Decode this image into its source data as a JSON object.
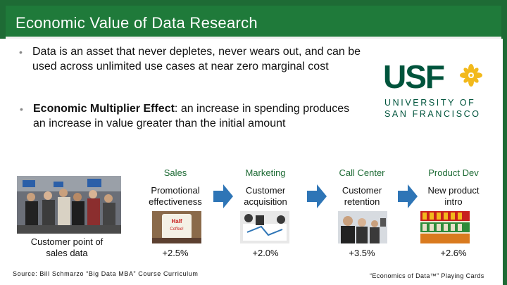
{
  "slide": {
    "title": "Economic Value of Data Research",
    "bullets": [
      {
        "text": "Data is an asset that never depletes, never wears out, and can be used across unlimited use cases at near zero marginal cost"
      },
      {
        "bold": "Economic Multiplier Effect",
        "text": ": an increase in spending produces an increase in value greater than the initial amount"
      }
    ],
    "logo": {
      "letters": "USF",
      "line1": "UNIVERSITY OF",
      "line2": "SAN FRANCISCO",
      "brand_color": "#00543c",
      "accent_color": "#f2b91c"
    },
    "photo_caption": "Customer point of sales data",
    "columns": [
      {
        "head": "Sales",
        "desc": "Promotional effectiveness",
        "value": "+2.5%"
      },
      {
        "head": "Marketing",
        "desc": "Customer acquisition",
        "value": "+2.0%"
      },
      {
        "head": "Call Center",
        "desc": "Customer retention",
        "value": "+3.5%"
      },
      {
        "head": "Product Dev",
        "desc": "New product intro",
        "value": "+2.6%"
      }
    ],
    "source": "Source: Bill Schmarzo “Big Data MBA” Course Curriculum",
    "cards_note": "“Economics of Data™” Playing Cards",
    "colors": {
      "title_bar": "#1f7a3a",
      "arrow": "#2e75b6",
      "heading": "#1e6b35"
    }
  }
}
